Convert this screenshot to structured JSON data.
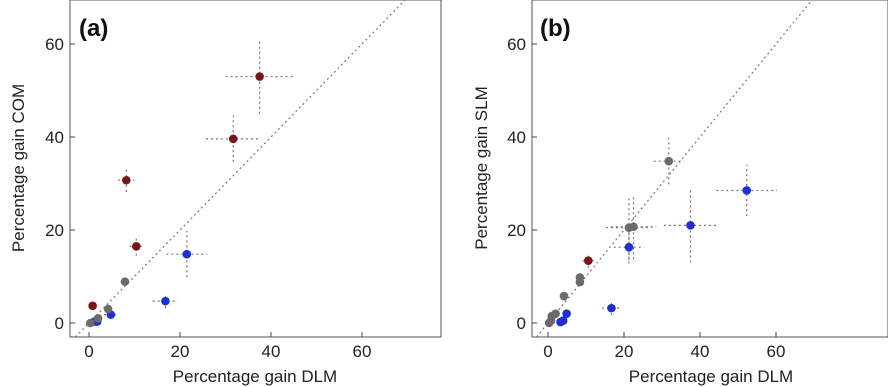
{
  "colors": {
    "red": "#7a1515",
    "blue": "#1f2fd0",
    "grey": "#6b6b6b"
  },
  "chart_data": [
    {
      "type": "scatter",
      "panel_label": "(a)",
      "xlabel": "Percentage gain DLM",
      "ylabel": "Percentage gain COM",
      "xlim": [
        -3,
        68
      ],
      "ylim": [
        -3,
        68
      ],
      "xticks": [
        0,
        20,
        40,
        60
      ],
      "yticks": [
        0,
        20,
        40,
        60
      ],
      "diagonal": true,
      "grid": false,
      "points": [
        {
          "x": 37.5,
          "y": 53.0,
          "xerr": 7.5,
          "yerr": 8,
          "color": "red"
        },
        {
          "x": 31.7,
          "y": 39.6,
          "xerr": 6,
          "yerr": 5,
          "color": "red"
        },
        {
          "x": 8.2,
          "y": 30.7,
          "xerr": 1.8,
          "yerr": 2.5,
          "color": "red"
        },
        {
          "x": 10.4,
          "y": 16.5,
          "xerr": 1.5,
          "yerr": 2,
          "color": "red"
        },
        {
          "x": 0.8,
          "y": 3.7,
          "xerr": 0,
          "yerr": 0,
          "color": "red"
        },
        {
          "x": 21.5,
          "y": 14.8,
          "xerr": 4.5,
          "yerr": 5,
          "color": "blue"
        },
        {
          "x": 16.8,
          "y": 4.7,
          "xerr": 2.8,
          "yerr": 1.5,
          "color": "blue"
        },
        {
          "x": 4.8,
          "y": 1.8,
          "xerr": 1.5,
          "yerr": 1,
          "color": "blue"
        },
        {
          "x": 1.2,
          "y": 0.3,
          "xerr": 0.5,
          "yerr": 0.5,
          "color": "blue"
        },
        {
          "x": 1.8,
          "y": 0.3,
          "xerr": 0,
          "yerr": 0,
          "color": "blue"
        },
        {
          "x": 7.9,
          "y": 8.9,
          "xerr": 0,
          "yerr": 0,
          "color": "grey"
        },
        {
          "x": 4.2,
          "y": 3.0,
          "xerr": 0,
          "yerr": 0,
          "color": "grey"
        },
        {
          "x": 2.0,
          "y": 1.0,
          "xerr": 0,
          "yerr": 0,
          "color": "grey"
        },
        {
          "x": 0.3,
          "y": 0.0,
          "xerr": 0,
          "yerr": 0,
          "color": "grey"
        }
      ]
    },
    {
      "type": "scatter",
      "panel_label": "(b)",
      "xlabel": "Percentage gain DLM",
      "ylabel": "Percentage gain SLM",
      "xlim": [
        -3,
        68
      ],
      "ylim": [
        -3,
        68
      ],
      "xticks": [
        0,
        20,
        40,
        60
      ],
      "yticks": [
        0,
        20,
        40,
        60
      ],
      "diagonal": true,
      "grid": false,
      "points": [
        {
          "x": 52.3,
          "y": 28.5,
          "xerr": 8,
          "yerr": 5.5,
          "color": "blue"
        },
        {
          "x": 37.5,
          "y": 21.0,
          "xerr": 7,
          "yerr": 8,
          "color": "blue"
        },
        {
          "x": 21.3,
          "y": 16.3,
          "xerr": 4,
          "yerr": 3.5,
          "color": "blue"
        },
        {
          "x": 16.7,
          "y": 3.2,
          "xerr": 2.5,
          "yerr": 1.5,
          "color": "blue"
        },
        {
          "x": 4.9,
          "y": 2.0,
          "xerr": 1,
          "yerr": 1,
          "color": "blue"
        },
        {
          "x": 3.3,
          "y": 0.2,
          "xerr": 0.5,
          "yerr": 0.5,
          "color": "blue"
        },
        {
          "x": 4.0,
          "y": 0.5,
          "xerr": 0,
          "yerr": 0,
          "color": "blue"
        },
        {
          "x": 10.6,
          "y": 13.4,
          "xerr": 1.5,
          "yerr": 1.5,
          "color": "red"
        },
        {
          "x": 31.8,
          "y": 34.8,
          "xerr": 4,
          "yerr": 5,
          "color": "grey"
        },
        {
          "x": 21.3,
          "y": 20.5,
          "xerr": 6,
          "yerr": 7,
          "color": "grey"
        },
        {
          "x": 22.5,
          "y": 20.7,
          "xerr": 6,
          "yerr": 7,
          "color": "grey"
        },
        {
          "x": 8.4,
          "y": 9.8,
          "xerr": 1,
          "yerr": 1,
          "color": "grey"
        },
        {
          "x": 8.4,
          "y": 8.8,
          "xerr": 0,
          "yerr": 0,
          "color": "grey"
        },
        {
          "x": 4.2,
          "y": 5.8,
          "xerr": 1,
          "yerr": 1,
          "color": "grey"
        },
        {
          "x": 2.0,
          "y": 2.0,
          "xerr": 0,
          "yerr": 0,
          "color": "grey"
        },
        {
          "x": 1.0,
          "y": 1.5,
          "xerr": 0,
          "yerr": 0,
          "color": "grey"
        },
        {
          "x": 0.8,
          "y": 0.5,
          "xerr": 0,
          "yerr": 0,
          "color": "grey"
        },
        {
          "x": 0.3,
          "y": 0.0,
          "xerr": 0,
          "yerr": 0,
          "color": "grey"
        }
      ]
    }
  ]
}
